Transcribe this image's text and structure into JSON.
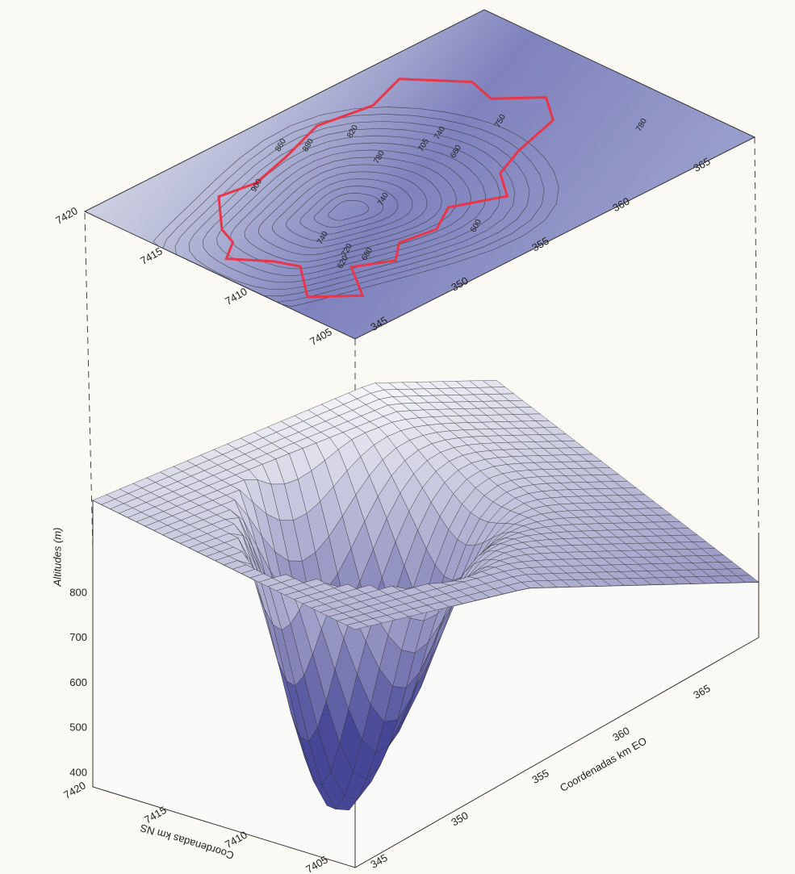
{
  "contour_map": {
    "ns_ticks": [
      7420,
      7415,
      7410,
      7405
    ],
    "eo_ticks": [
      345,
      350,
      355,
      360,
      365
    ],
    "contour_labels": [
      "900",
      "880",
      "820",
      "860",
      "780",
      "740",
      "705",
      "660",
      "740",
      "750",
      "780",
      "740",
      "720",
      "620",
      "680",
      "600"
    ]
  },
  "surface_block": {
    "y_title": "Altitudes (m)",
    "yticks": [
      400,
      500,
      600,
      700,
      800
    ],
    "ns_title": "Coordenadas km NS",
    "ns_ticks": [
      7420,
      7415,
      7410,
      7405
    ],
    "eo_title": "Coordenadas km EO",
    "eo_ticks": [
      345,
      350,
      355,
      360,
      365
    ]
  }
}
